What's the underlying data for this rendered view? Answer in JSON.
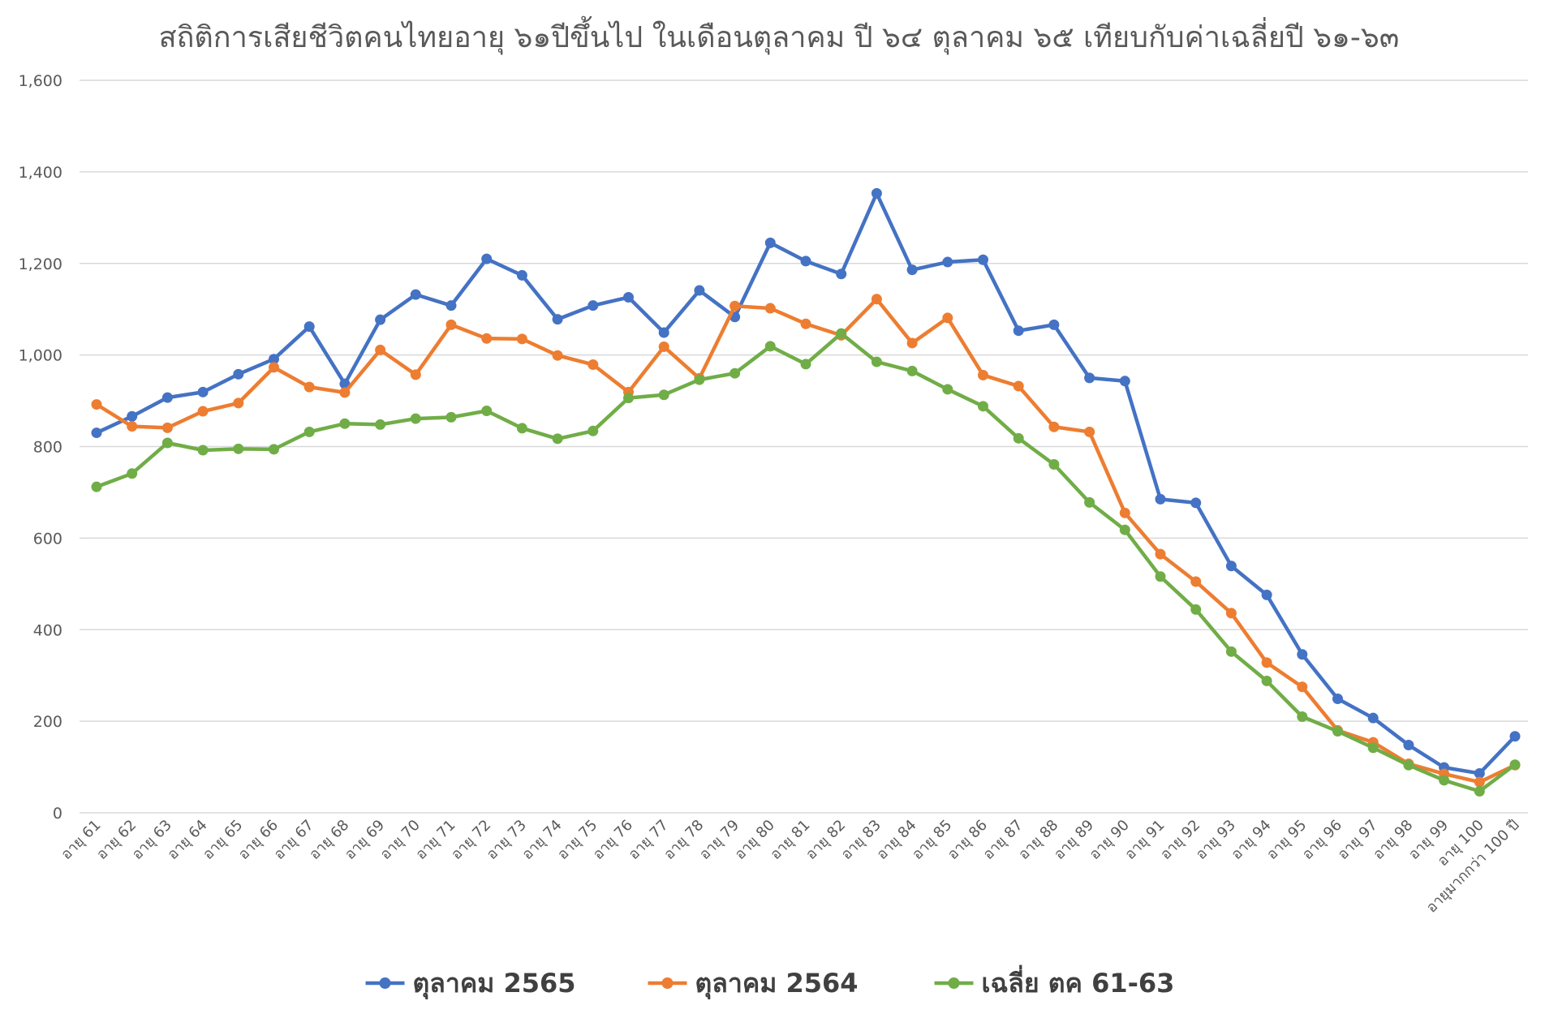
{
  "chart_data": {
    "type": "line",
    "title": "สถิติการเสียชีวิตคนไทยอายุ ๖๑ปีขึ้นไป ในเดือนตุลาคม ปี ๖๔ ตุลาคม ๖๕ เทียบกับค่าเฉลี่ยปี ๖๑-๖๓",
    "xlabel": "",
    "ylabel": "",
    "ylim": [
      0,
      1600
    ],
    "yticks": [
      "0",
      "200",
      "400",
      "600",
      "800",
      "1,000",
      "1,200",
      "1,400",
      "1,600"
    ],
    "yticks_values": [
      0,
      200,
      400,
      600,
      800,
      1000,
      1200,
      1400,
      1600
    ],
    "grid": true,
    "legend_position": "bottom",
    "categories": [
      "อายุ 61",
      "อายุ 62",
      "อายุ 63",
      "อายุ 64",
      "อายุ 65",
      "อายุ 66",
      "อายุ 67",
      "อายุ 68",
      "อายุ 69",
      "อายุ 70",
      "อายุ 71",
      "อายุ 72",
      "อายุ 73",
      "อายุ 74",
      "อายุ 75",
      "อายุ 76",
      "อายุ 77",
      "อายุ 78",
      "อายุ 79",
      "อายุ 80",
      "อายุ 81",
      "อายุ 82",
      "อายุ 83",
      "อายุ 84",
      "อายุ 85",
      "อายุ 86",
      "อายุ 87",
      "อายุ 88",
      "อายุ 89",
      "อายุ 90",
      "อายุ 91",
      "อายุ 92",
      "อายุ 93",
      "อายุ 94",
      "อายุ 95",
      "อายุ 96",
      "อายุ 97",
      "อายุ 98",
      "อายุ 99",
      "อายุ 100",
      "อายุมากกว่า 100 ปี"
    ],
    "series": [
      {
        "name": "ตุลาคม 2565",
        "color": "#4472c4",
        "values": [
          830,
          866,
          907,
          919,
          958,
          991,
          1062,
          937,
          1077,
          1132,
          1108,
          1210,
          1174,
          1078,
          1108,
          1126,
          1049,
          1141,
          1083,
          1245,
          1205,
          1177,
          1353,
          1186,
          1203,
          1208,
          1053,
          1066,
          950,
          943,
          685,
          677,
          539,
          476,
          346,
          249,
          207,
          148,
          99,
          86,
          167
        ]
      },
      {
        "name": "ตุลาคม 2564",
        "color": "#ed7d31",
        "values": [
          892,
          844,
          841,
          877,
          895,
          973,
          930,
          918,
          1011,
          957,
          1066,
          1036,
          1035,
          999,
          979,
          919,
          1018,
          949,
          1107,
          1102,
          1068,
          1043,
          1122,
          1026,
          1081,
          956,
          932,
          843,
          832,
          655,
          565,
          505,
          436,
          328,
          275,
          180,
          154,
          107,
          85,
          67,
          104
        ]
      },
      {
        "name": "เฉลี่ย ตค 61-63",
        "color": "#70ad47",
        "values": [
          712,
          741,
          808,
          792,
          795,
          794,
          832,
          850,
          848,
          861,
          864,
          878,
          840,
          817,
          834,
          906,
          913,
          946,
          960,
          1019,
          980,
          1047,
          985,
          965,
          925,
          888,
          818,
          761,
          678,
          618,
          516,
          444,
          352,
          288,
          210,
          178,
          142,
          104,
          71,
          47,
          105
        ]
      }
    ]
  }
}
